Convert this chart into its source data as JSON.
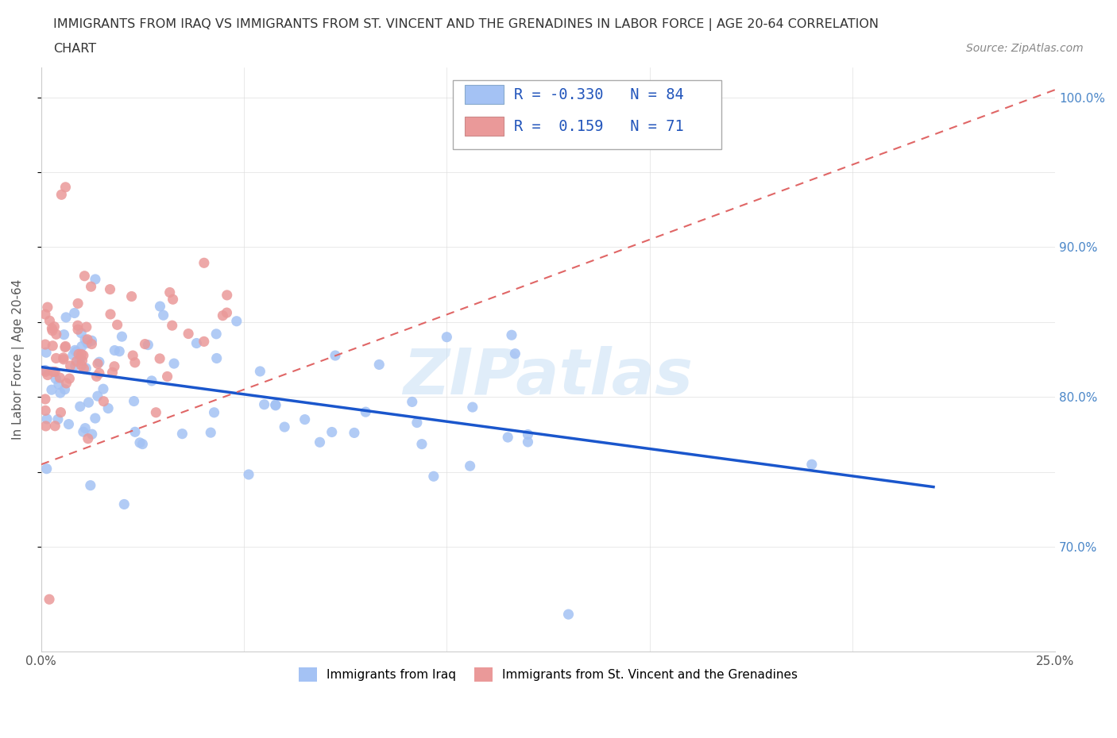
{
  "title_line1": "IMMIGRANTS FROM IRAQ VS IMMIGRANTS FROM ST. VINCENT AND THE GRENADINES IN LABOR FORCE | AGE 20-64 CORRELATION",
  "title_line2": "CHART",
  "source_text": "Source: ZipAtlas.com",
  "ylabel": "In Labor Force | Age 20-64",
  "xlim": [
    0.0,
    0.25
  ],
  "ylim": [
    0.63,
    1.02
  ],
  "iraq_scatter_color": "#a4c2f4",
  "svg_scatter_color": "#ea9999",
  "iraq_line_color": "#1a56cc",
  "svg_line_color": "#e06666",
  "watermark_text": "ZIPatlas",
  "legend_iraq_label": "Immigrants from Iraq",
  "legend_svg_label": "Immigrants from St. Vincent and the Grenadines",
  "iraq_R": -0.33,
  "iraq_N": 84,
  "svg_R": 0.159,
  "svg_N": 71,
  "iraq_line_x0": 0.0,
  "iraq_line_x1": 0.22,
  "iraq_line_y0": 0.82,
  "iraq_line_y1": 0.74,
  "svg_line_x0": 0.0,
  "svg_line_x1": 0.25,
  "svg_line_y0": 0.755,
  "svg_line_y1": 1.005
}
